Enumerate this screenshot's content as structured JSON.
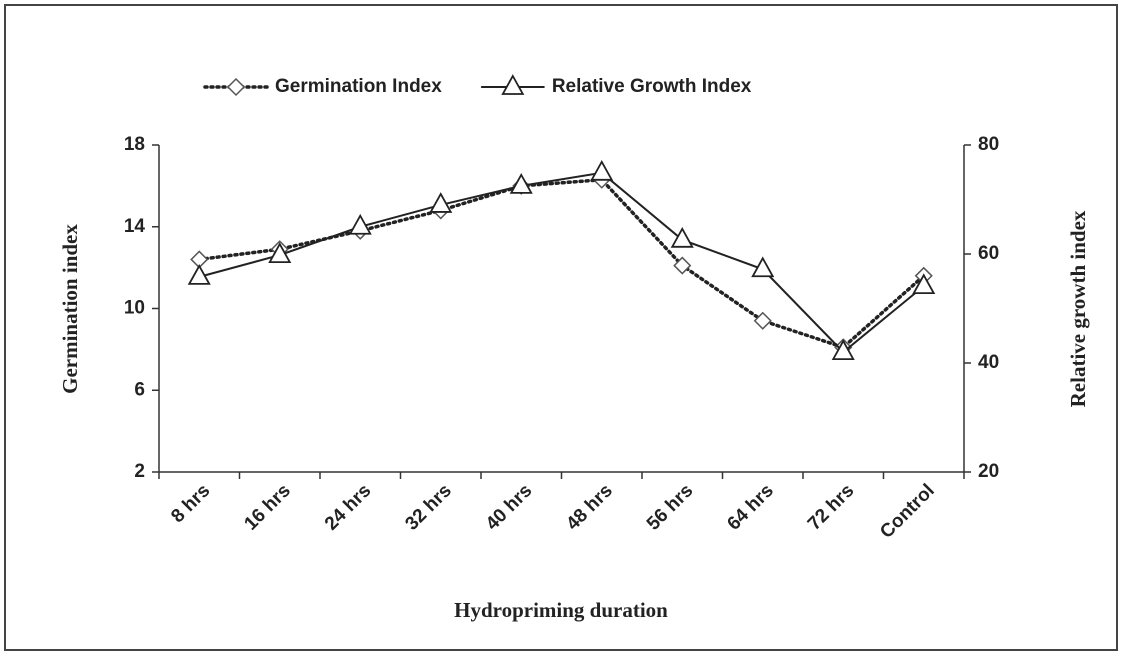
{
  "chart_data": {
    "type": "line",
    "x_label": "Hydropriming duration",
    "y_label": "Germination index",
    "y2_label": "Relative growth index",
    "categories": [
      "8 hrs",
      "16 hrs",
      "24 hrs",
      "32 hrs",
      "40 hrs",
      "48 hrs",
      "56 hrs",
      "64 hrs",
      "72 hrs",
      "Control"
    ],
    "series": [
      {
        "name": "Germination Index",
        "color": "#222222",
        "line_style": "dotted",
        "marker": "diamond",
        "values": [
          12.4,
          12.9,
          13.8,
          14.8,
          16.0,
          16.3,
          12.1,
          9.4,
          8.1,
          11.6
        ]
      },
      {
        "name": "Relative Growth Index",
        "color": "#222222",
        "line_style": "solid",
        "marker": "triangle",
        "axis": "y2",
        "values": [
          55.8,
          59.8,
          65.0,
          69.0,
          72.5,
          74.9,
          62.6,
          57.2,
          42.0,
          54.1
        ]
      }
    ],
    "ylim": [
      2,
      18
    ],
    "yticks": [
      2,
      6,
      10,
      14,
      18
    ],
    "y2lim": [
      20,
      80
    ],
    "y2ticks": [
      20,
      40,
      60,
      80
    ],
    "legend": "top",
    "grid": false
  }
}
